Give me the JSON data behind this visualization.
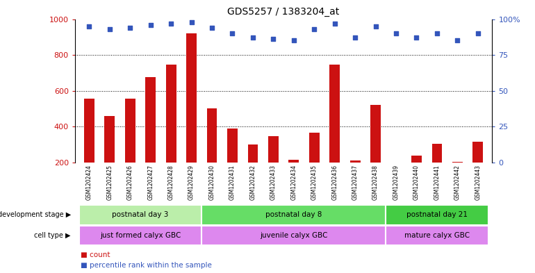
{
  "title": "GDS5257 / 1383204_at",
  "samples": [
    "GSM1202424",
    "GSM1202425",
    "GSM1202426",
    "GSM1202427",
    "GSM1202428",
    "GSM1202429",
    "GSM1202430",
    "GSM1202431",
    "GSM1202432",
    "GSM1202433",
    "GSM1202434",
    "GSM1202435",
    "GSM1202436",
    "GSM1202437",
    "GSM1202438",
    "GSM1202439",
    "GSM1202440",
    "GSM1202441",
    "GSM1202442",
    "GSM1202443"
  ],
  "counts": [
    555,
    460,
    555,
    675,
    745,
    920,
    500,
    390,
    300,
    345,
    215,
    365,
    745,
    210,
    520,
    195,
    240,
    305,
    205,
    315
  ],
  "percentiles": [
    95,
    93,
    94,
    96,
    97,
    98,
    94,
    90,
    87,
    86,
    85,
    93,
    97,
    87,
    95,
    90,
    87,
    90,
    85,
    90
  ],
  "ylim_left": [
    200,
    1000
  ],
  "ylim_right": [
    0,
    100
  ],
  "yticks_left": [
    200,
    400,
    600,
    800,
    1000
  ],
  "yticks_right": [
    0,
    25,
    50,
    75,
    100
  ],
  "bar_color": "#cc1111",
  "dot_color": "#3355bb",
  "bg_color": "#ffffff",
  "groups": [
    {
      "label": "postnatal day 3",
      "start": 0,
      "end": 6,
      "color": "#bbeeaa"
    },
    {
      "label": "postnatal day 8",
      "start": 6,
      "end": 15,
      "color": "#66dd66"
    },
    {
      "label": "postnatal day 21",
      "start": 15,
      "end": 20,
      "color": "#44cc44"
    }
  ],
  "cell_types": [
    {
      "label": "just formed calyx GBC",
      "start": 0,
      "end": 6,
      "color": "#dd88ee"
    },
    {
      "label": "juvenile calyx GBC",
      "start": 6,
      "end": 15,
      "color": "#dd88ee"
    },
    {
      "label": "mature calyx GBC",
      "start": 15,
      "end": 20,
      "color": "#dd88ee"
    }
  ],
  "dev_stage_label": "development stage",
  "cell_type_label": "cell type",
  "legend_count_label": "count",
  "legend_pct_label": "percentile rank within the sample",
  "xtick_bg": "#cccccc"
}
